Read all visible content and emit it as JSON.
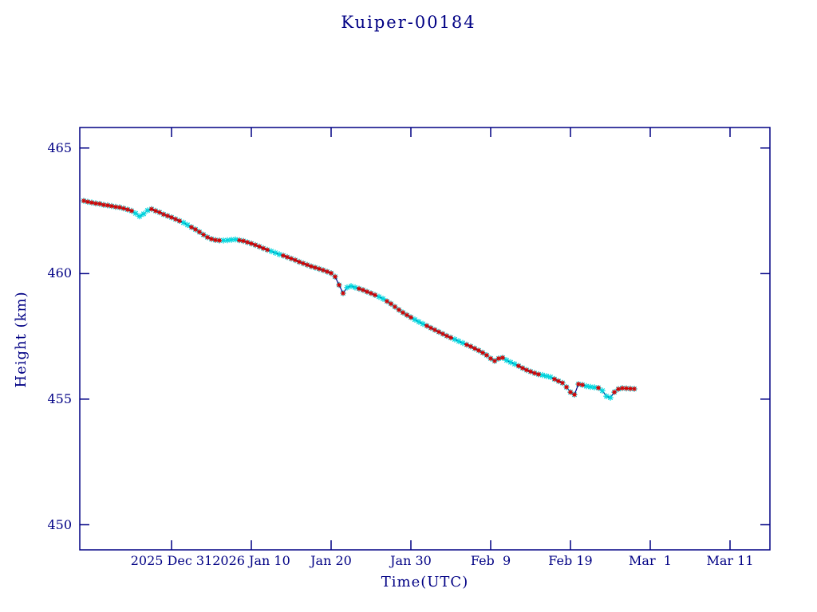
{
  "title": "Kuiper-00184",
  "axes": {
    "x_label": "Time(UTC)",
    "y_label": "Height (km)",
    "y_ticks": [
      450,
      455,
      460,
      465
    ],
    "x_ticks": [
      {
        "day": 11,
        "label": "2025 Dec 31"
      },
      {
        "day": 21,
        "label": "2026 Jan 10"
      },
      {
        "day": 31,
        "label": "Jan 20"
      },
      {
        "day": 41,
        "label": "Jan 30"
      },
      {
        "day": 51,
        "label": "Feb  9"
      },
      {
        "day": 61,
        "label": "Feb 19"
      },
      {
        "day": 71,
        "label": "Mar  1"
      },
      {
        "day": 81,
        "label": "Mar 11"
      }
    ]
  },
  "colors": {
    "axis": "#000084",
    "text": "#000084",
    "track_line": "#000084",
    "measured_marker": "#d40000",
    "predicted_marker": "#00d5dd",
    "background": "#ffffff"
  },
  "chart_data": {
    "type": "line",
    "title": "Kuiper-00184",
    "xlabel": "Time(UTC)",
    "ylabel": "Height (km)",
    "x_unit": "days since 2025-12-20 (UTC)",
    "xlim_days": [
      -0.5,
      86.0
    ],
    "ylim": [
      449.0,
      465.82
    ],
    "grid": false,
    "legend": "none",
    "marker_style": "asterisk",
    "cyan_marker_day_ranges": [
      [
        6.3,
        8.2
      ],
      [
        12.3,
        13.2
      ],
      [
        17.5,
        19.0
      ],
      [
        23.5,
        24.5
      ],
      [
        33.0,
        34.2
      ],
      [
        37.0,
        37.8
      ],
      [
        41.5,
        42.5
      ],
      [
        46.5,
        47.5
      ],
      [
        53.0,
        54.0
      ],
      [
        57.5,
        58.6
      ],
      [
        63.0,
        64.0
      ],
      [
        64.8,
        66.4
      ]
    ],
    "series": [
      {
        "name": "orbit-height-km",
        "points": [
          [
            0.0,
            462.9
          ],
          [
            0.5,
            462.86
          ],
          [
            1.0,
            462.83
          ],
          [
            1.5,
            462.8
          ],
          [
            2.0,
            462.78
          ],
          [
            2.5,
            462.74
          ],
          [
            3.0,
            462.72
          ],
          [
            3.5,
            462.69
          ],
          [
            4.0,
            462.66
          ],
          [
            4.5,
            462.64
          ],
          [
            5.0,
            462.6
          ],
          [
            5.5,
            462.55
          ],
          [
            6.0,
            462.5
          ],
          [
            6.5,
            462.4
          ],
          [
            7.0,
            462.28
          ],
          [
            7.5,
            462.38
          ],
          [
            8.0,
            462.52
          ],
          [
            8.5,
            462.57
          ],
          [
            9.0,
            462.5
          ],
          [
            9.5,
            462.44
          ],
          [
            10.0,
            462.36
          ],
          [
            10.5,
            462.3
          ],
          [
            11.0,
            462.24
          ],
          [
            11.5,
            462.17
          ],
          [
            12.0,
            462.1
          ],
          [
            12.5,
            462.03
          ],
          [
            13.0,
            461.94
          ],
          [
            13.5,
            461.85
          ],
          [
            14.0,
            461.76
          ],
          [
            14.5,
            461.66
          ],
          [
            15.0,
            461.55
          ],
          [
            15.5,
            461.45
          ],
          [
            16.0,
            461.38
          ],
          [
            16.5,
            461.34
          ],
          [
            17.0,
            461.32
          ],
          [
            17.5,
            461.32
          ],
          [
            18.0,
            461.33
          ],
          [
            18.5,
            461.35
          ],
          [
            19.0,
            461.36
          ],
          [
            19.5,
            461.33
          ],
          [
            20.0,
            461.3
          ],
          [
            20.5,
            461.25
          ],
          [
            21.0,
            461.2
          ],
          [
            21.5,
            461.14
          ],
          [
            22.0,
            461.08
          ],
          [
            22.5,
            461.01
          ],
          [
            23.0,
            460.95
          ],
          [
            23.5,
            460.89
          ],
          [
            24.0,
            460.83
          ],
          [
            24.5,
            460.77
          ],
          [
            25.0,
            460.72
          ],
          [
            25.5,
            460.66
          ],
          [
            26.0,
            460.6
          ],
          [
            26.5,
            460.54
          ],
          [
            27.0,
            460.47
          ],
          [
            27.5,
            460.41
          ],
          [
            28.0,
            460.35
          ],
          [
            28.5,
            460.29
          ],
          [
            29.0,
            460.24
          ],
          [
            29.5,
            460.19
          ],
          [
            30.0,
            460.14
          ],
          [
            30.5,
            460.08
          ],
          [
            31.0,
            460.02
          ],
          [
            31.5,
            459.88
          ],
          [
            32.0,
            459.55
          ],
          [
            32.5,
            459.22
          ],
          [
            33.0,
            459.45
          ],
          [
            33.5,
            459.5
          ],
          [
            34.0,
            459.45
          ],
          [
            34.5,
            459.4
          ],
          [
            35.0,
            459.35
          ],
          [
            35.5,
            459.28
          ],
          [
            36.0,
            459.22
          ],
          [
            36.5,
            459.15
          ],
          [
            37.0,
            459.08
          ],
          [
            37.5,
            459.0
          ],
          [
            38.0,
            458.9
          ],
          [
            38.5,
            458.8
          ],
          [
            39.0,
            458.68
          ],
          [
            39.5,
            458.56
          ],
          [
            40.0,
            458.45
          ],
          [
            40.5,
            458.35
          ],
          [
            41.0,
            458.26
          ],
          [
            41.5,
            458.17
          ],
          [
            42.0,
            458.08
          ],
          [
            42.5,
            458.0
          ],
          [
            43.0,
            457.92
          ],
          [
            43.5,
            457.84
          ],
          [
            44.0,
            457.76
          ],
          [
            44.5,
            457.68
          ],
          [
            45.0,
            457.6
          ],
          [
            45.5,
            457.52
          ],
          [
            46.0,
            457.45
          ],
          [
            46.5,
            457.38
          ],
          [
            47.0,
            457.31
          ],
          [
            47.5,
            457.24
          ],
          [
            48.0,
            457.17
          ],
          [
            48.5,
            457.1
          ],
          [
            49.0,
            457.02
          ],
          [
            49.5,
            456.94
          ],
          [
            50.0,
            456.85
          ],
          [
            50.5,
            456.75
          ],
          [
            51.0,
            456.62
          ],
          [
            51.5,
            456.52
          ],
          [
            52.0,
            456.62
          ],
          [
            52.5,
            456.65
          ],
          [
            53.0,
            456.55
          ],
          [
            53.5,
            456.47
          ],
          [
            54.0,
            456.4
          ],
          [
            54.5,
            456.32
          ],
          [
            55.0,
            456.24
          ],
          [
            55.5,
            456.16
          ],
          [
            56.0,
            456.1
          ],
          [
            56.5,
            456.04
          ],
          [
            57.0,
            455.99
          ],
          [
            57.5,
            455.96
          ],
          [
            58.0,
            455.92
          ],
          [
            58.5,
            455.88
          ],
          [
            59.0,
            455.8
          ],
          [
            59.5,
            455.72
          ],
          [
            60.0,
            455.65
          ],
          [
            60.5,
            455.48
          ],
          [
            61.0,
            455.28
          ],
          [
            61.5,
            455.18
          ],
          [
            62.0,
            455.6
          ],
          [
            62.5,
            455.57
          ],
          [
            63.0,
            455.52
          ],
          [
            63.5,
            455.49
          ],
          [
            64.0,
            455.47
          ],
          [
            64.5,
            455.45
          ],
          [
            65.0,
            455.34
          ],
          [
            65.5,
            455.12
          ],
          [
            66.0,
            455.06
          ],
          [
            66.5,
            455.28
          ],
          [
            67.0,
            455.4
          ],
          [
            67.5,
            455.44
          ],
          [
            68.0,
            455.43
          ],
          [
            68.5,
            455.42
          ],
          [
            69.0,
            455.41
          ]
        ]
      }
    ]
  }
}
